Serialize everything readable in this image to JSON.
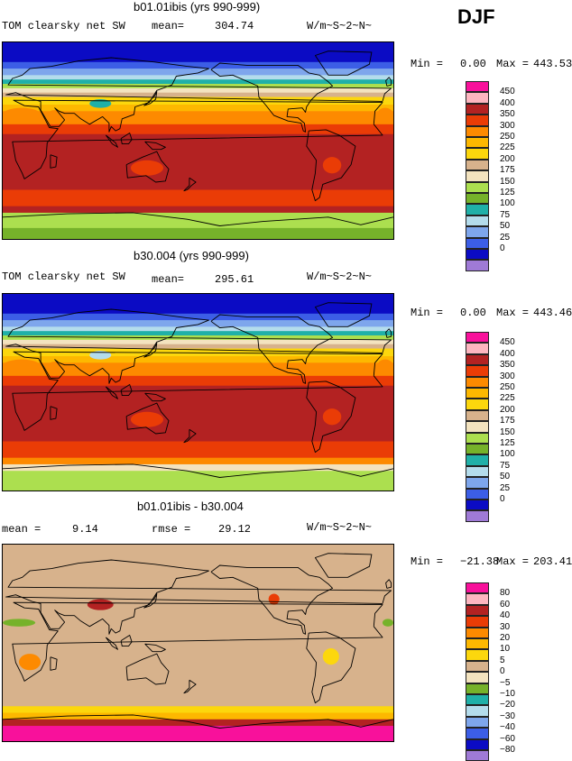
{
  "season": "DJF",
  "colors": {
    "abs": [
      "#9f7ad6",
      "#0b0bc4",
      "#3c5ee6",
      "#7ea6ec",
      "#b4dcec",
      "#20b0a8",
      "#76b22a",
      "#acdf4f",
      "#f3e3bf",
      "#d7b28c",
      "#fcd70d",
      "#fdb800",
      "#fd8a00",
      "#ea3c06",
      "#b32222",
      "#fdb6c0",
      "#f8119b"
    ],
    "diff": [
      "#9f7ad6",
      "#0b0bc4",
      "#3c5ee6",
      "#7ea6ec",
      "#b4dcec",
      "#20b0a8",
      "#76b22a",
      "#f3e3bf",
      "#d7b28c",
      "#fcd70d",
      "#fdb800",
      "#fd8a00",
      "#ea3c06",
      "#b32222",
      "#fdb6c0",
      "#f8119b"
    ]
  },
  "chart_data": [
    {
      "type": "heatmap",
      "title": "b01.01ibis (yrs 990-999)",
      "left_label": "TOM clearsky net SW",
      "stat_label": "mean=",
      "stat_value": "304.74",
      "units": "W/m~S~2~N~",
      "min_label": "Min =",
      "min_value": "0.00",
      "max_label": "Max =",
      "max_value": "443.53",
      "levels": [
        "0",
        "25",
        "50",
        "75",
        "100",
        "125",
        "150",
        "175",
        "200",
        "225",
        "250",
        "300",
        "350",
        "400",
        "450"
      ],
      "bands_lat_top_to_bottom": [
        {
          "lat_from": 90,
          "lat_to": 72,
          "value": 12
        },
        {
          "lat_from": 72,
          "lat_to": 66,
          "value": 40
        },
        {
          "lat_from": 66,
          "lat_to": 60,
          "value": 65
        },
        {
          "lat_from": 60,
          "lat_to": 56,
          "value": 90
        },
        {
          "lat_from": 56,
          "lat_to": 52,
          "value": 115
        },
        {
          "lat_from": 52,
          "lat_to": 48,
          "value": 160
        },
        {
          "lat_from": 48,
          "lat_to": 44,
          "value": 190
        },
        {
          "lat_from": 44,
          "lat_to": 40,
          "value": 215
        },
        {
          "lat_from": 40,
          "lat_to": 33,
          "value": 240
        },
        {
          "lat_from": 33,
          "lat_to": 27,
          "value": 275
        },
        {
          "lat_from": 27,
          "lat_to": 15,
          "value": 325
        },
        {
          "lat_from": 15,
          "lat_to": 6,
          "value": 375
        },
        {
          "lat_from": 6,
          "lat_to": -45,
          "value": 425
        },
        {
          "lat_from": -45,
          "lat_to": -60,
          "value": 375
        },
        {
          "lat_from": -60,
          "lat_to": -66,
          "value": 425
        },
        {
          "lat_from": -66,
          "lat_to": -80,
          "value": 163
        },
        {
          "lat_from": -80,
          "lat_to": -90,
          "value": 140
        }
      ]
    },
    {
      "type": "heatmap",
      "title": "b30.004 (yrs 990-999)",
      "left_label": "TOM clearsky net SW",
      "stat_label": "mean=",
      "stat_value": "295.61",
      "units": "W/m~S~2~N~",
      "min_label": "Min =",
      "min_value": "0.00",
      "max_label": "Max =",
      "max_value": "443.46",
      "levels": [
        "0",
        "25",
        "50",
        "75",
        "100",
        "125",
        "150",
        "175",
        "200",
        "225",
        "250",
        "300",
        "350",
        "400",
        "450"
      ],
      "bands_lat_top_to_bottom": [
        {
          "lat_from": 90,
          "lat_to": 72,
          "value": 12
        },
        {
          "lat_from": 72,
          "lat_to": 66,
          "value": 40
        },
        {
          "lat_from": 66,
          "lat_to": 60,
          "value": 65
        },
        {
          "lat_from": 60,
          "lat_to": 56,
          "value": 90
        },
        {
          "lat_from": 56,
          "lat_to": 52,
          "value": 115
        },
        {
          "lat_from": 52,
          "lat_to": 48,
          "value": 160
        },
        {
          "lat_from": 48,
          "lat_to": 44,
          "value": 190
        },
        {
          "lat_from": 44,
          "lat_to": 40,
          "value": 215
        },
        {
          "lat_from": 40,
          "lat_to": 33,
          "value": 240
        },
        {
          "lat_from": 33,
          "lat_to": 27,
          "value": 275
        },
        {
          "lat_from": 27,
          "lat_to": 15,
          "value": 325
        },
        {
          "lat_from": 15,
          "lat_to": 6,
          "value": 375
        },
        {
          "lat_from": 6,
          "lat_to": -45,
          "value": 425
        },
        {
          "lat_from": -45,
          "lat_to": -60,
          "value": 375
        },
        {
          "lat_from": -60,
          "lat_to": -66,
          "value": 325
        },
        {
          "lat_from": -66,
          "lat_to": -72,
          "value": 190
        },
        {
          "lat_from": -72,
          "lat_to": -90,
          "value": 163
        }
      ]
    },
    {
      "type": "heatmap",
      "title": "b01.01ibis - b30.004",
      "left_label": "mean =",
      "left_value": "9.14",
      "stat_label": "rmse =",
      "stat_value": "29.12",
      "units": "W/m~S~2~N~",
      "min_label": "Min =",
      "min_value": "−21.38",
      "max_label": "Max =",
      "max_value": "203.41",
      "levels": [
        "−80",
        "−60",
        "−40",
        "−30",
        "−20",
        "−10",
        "−5",
        "0",
        "5",
        "10",
        "20",
        "30",
        "40",
        "60",
        "80"
      ],
      "bands_lat_top_to_bottom": [
        {
          "lat_from": 90,
          "lat_to": 82,
          "value": 2
        },
        {
          "lat_from": 82,
          "lat_to": -58,
          "value": 2
        },
        {
          "lat_from": -58,
          "lat_to": -64,
          "value": 7
        },
        {
          "lat_from": -64,
          "lat_to": -70,
          "value": 15
        },
        {
          "lat_from": -70,
          "lat_to": -76,
          "value": 50
        },
        {
          "lat_from": -76,
          "lat_to": -90,
          "value": 90
        }
      ]
    }
  ]
}
